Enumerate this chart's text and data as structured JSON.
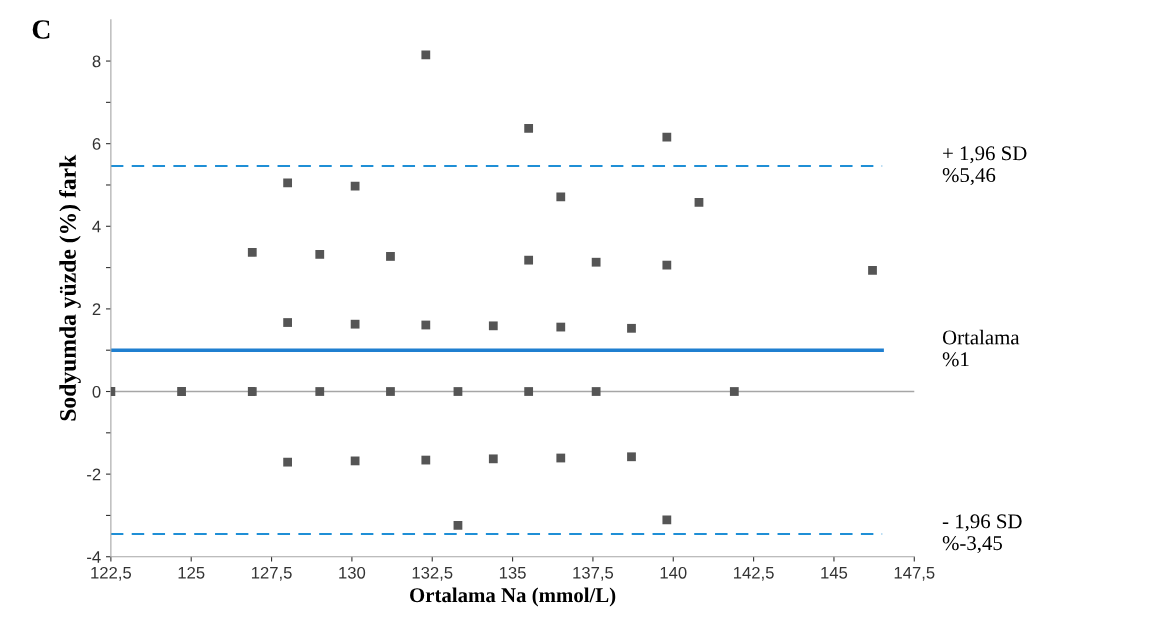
{
  "chart_data": {
    "type": "scatter",
    "xlabel": "Ortalama Na (mmol/L)",
    "ylabel": "Sodyumda yüzde (%) fark",
    "annotations": [
      "C"
    ],
    "series": [
      {
        "color": "#555555",
        "x": [
          122.5,
          124.7,
          126.9,
          129.0,
          131.2,
          133.3,
          135.5,
          137.6,
          141.9,
          128.0,
          130.1,
          132.3,
          134.4,
          136.5,
          138.7,
          128.0,
          130.1,
          132.3,
          134.4,
          136.5,
          138.7,
          133.3,
          139.8,
          132.3,
          135.5,
          139.8,
          128.0,
          130.1,
          136.5,
          140.8,
          126.9,
          129.0,
          131.2,
          135.5,
          137.6,
          139.8,
          146.2
        ],
        "values": [
          0,
          0,
          0,
          0,
          0,
          0,
          0,
          0,
          0,
          1.67,
          1.63,
          1.61,
          1.59,
          1.56,
          1.53,
          -1.71,
          -1.68,
          -1.66,
          -1.63,
          -1.61,
          -1.58,
          -3.24,
          -3.11,
          8.15,
          6.37,
          6.16,
          5.05,
          4.97,
          4.71,
          4.58,
          3.37,
          3.32,
          3.27,
          3.18,
          3.13,
          3.06,
          2.93
        ]
      }
    ],
    "marker": "square",
    "grid": false,
    "legend": false,
    "xlim": [
      122.5,
      147.5
    ],
    "xticks": [
      {
        "value": 122.5,
        "label": "122,5"
      },
      125,
      {
        "value": 127.5,
        "label": "127,5"
      },
      130,
      {
        "value": 132.5,
        "label": "132,5"
      },
      135,
      {
        "value": 137.5,
        "label": "137,5"
      },
      140,
      {
        "value": 142.5,
        "label": "142,5"
      },
      145,
      {
        "value": 147.5,
        "label": "147,5"
      }
    ],
    "ylim": [
      -4,
      9
    ],
    "yticks": [
      -4,
      {
        "value": -3,
        "label": null
      },
      -2,
      {
        "value": -1,
        "label": null
      },
      0,
      {
        "value": 1,
        "label": null
      },
      2,
      {
        "value": 3,
        "label": null
      },
      4,
      {
        "value": 5,
        "label": null
      },
      6,
      {
        "value": 7,
        "label": null
      },
      8
    ],
    "ref_lines": [
      {
        "axis": "y",
        "value": 0,
        "color": "#a6a6a6",
        "line_style": "solid"
      },
      {
        "axis": "y",
        "value": 5.46,
        "label": "+ 1,96 SD\n%5,46",
        "color": "#1f8fd6",
        "line_style": "dashed"
      },
      {
        "axis": "y",
        "value": 1,
        "label": "Ortalama\n%1",
        "color": "#1f7fd0",
        "line_style": "solid"
      },
      {
        "axis": "y",
        "value": -3.45,
        "label": "- 1,96 SD\n%-3,45",
        "color": "#1f8fd6",
        "line_style": "dashed"
      }
    ]
  }
}
